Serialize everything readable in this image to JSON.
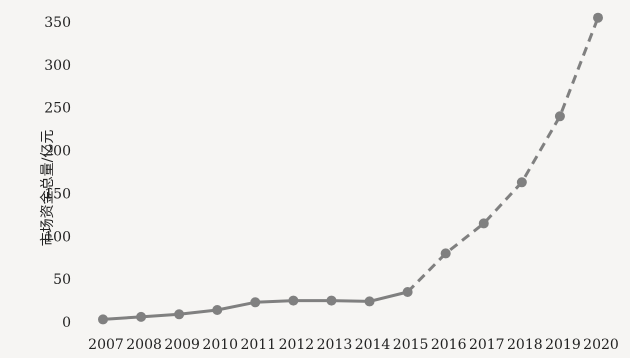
{
  "chart_data": {
    "type": "line",
    "title": "",
    "xlabel": "",
    "ylabel": "市场资金总量/亿元",
    "categories": [
      "2007",
      "2008",
      "2009",
      "2010",
      "2011",
      "2012",
      "2013",
      "2014",
      "2015",
      "2016",
      "2017",
      "2018",
      "2019",
      "2020"
    ],
    "yticks": [
      "0",
      "50",
      "100",
      "150",
      "200",
      "250",
      "300",
      "350"
    ],
    "ylim": [
      0,
      350
    ],
    "grid": false,
    "series": [
      {
        "values": [
          3,
          6,
          9,
          14,
          23,
          25,
          25,
          24,
          35,
          80,
          115,
          163,
          240,
          355
        ],
        "solid_until_index": 8,
        "color": "#808080"
      }
    ]
  }
}
